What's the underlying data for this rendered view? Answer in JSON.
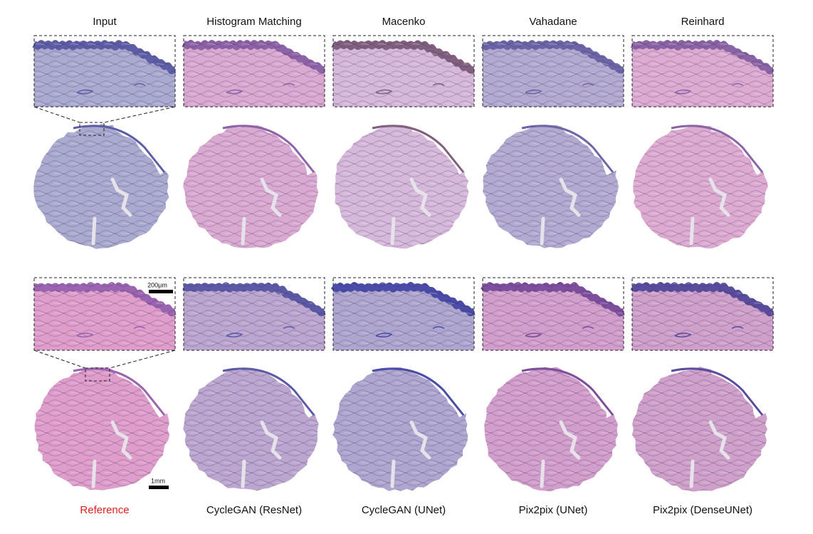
{
  "top_labels": [
    "Input",
    "Histogram Matching",
    "Macenko",
    "Vahadane",
    "Reinhard"
  ],
  "bottom_labels": [
    "Reference",
    "CycleGAN (ResNet)",
    "CycleGAN (UNet)",
    "Pix2pix (UNet)",
    "Pix2pix (DenseUNet)"
  ],
  "scale_bars": {
    "inset": "200μm",
    "whole": "1mm"
  }
}
